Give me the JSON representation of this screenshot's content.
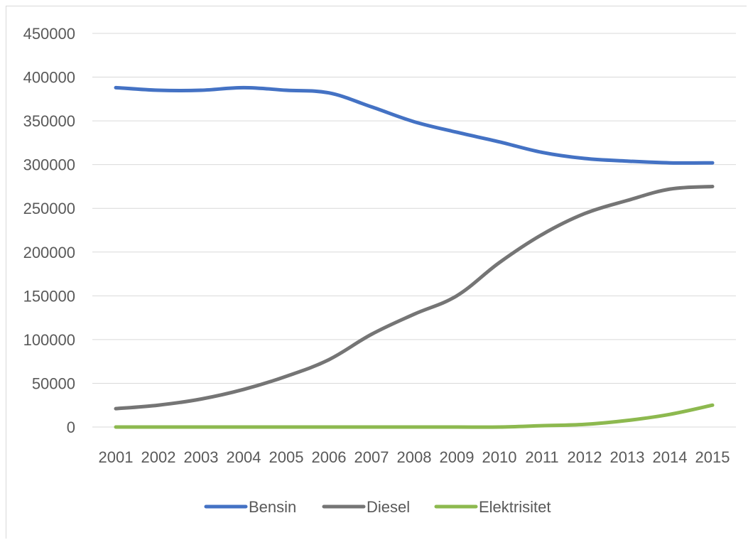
{
  "chart_data": {
    "type": "line",
    "title": "",
    "xlabel": "",
    "ylabel": "",
    "categories": [
      "2001",
      "2002",
      "2003",
      "2004",
      "2005",
      "2006",
      "2007",
      "2008",
      "2009",
      "2010",
      "2011",
      "2012",
      "2013",
      "2014",
      "2015"
    ],
    "ylim": [
      0,
      450000
    ],
    "yticks": [
      "450000",
      "400000",
      "350000",
      "300000",
      "250000",
      "200000",
      "150000",
      "100000",
      "50000",
      "0"
    ],
    "grid": "horizontal",
    "legend_position": "bottom",
    "series": [
      {
        "name": "Bensin",
        "color": "#4472C4",
        "values": [
          388000,
          385000,
          385000,
          388000,
          385000,
          382000,
          366000,
          349000,
          337000,
          326000,
          314000,
          307000,
          304000,
          302000,
          302000
        ]
      },
      {
        "name": "Diesel",
        "color": "#757575",
        "values": [
          21000,
          25000,
          32000,
          43000,
          58000,
          77000,
          106000,
          129000,
          150000,
          188000,
          220000,
          244000,
          259000,
          272000,
          275000
        ]
      },
      {
        "name": "Elektrisitet",
        "color": "#8DB94F",
        "values": [
          0,
          0,
          0,
          0,
          0,
          0,
          0,
          0,
          0,
          0,
          1500,
          3000,
          7500,
          14500,
          25000
        ]
      }
    ]
  }
}
